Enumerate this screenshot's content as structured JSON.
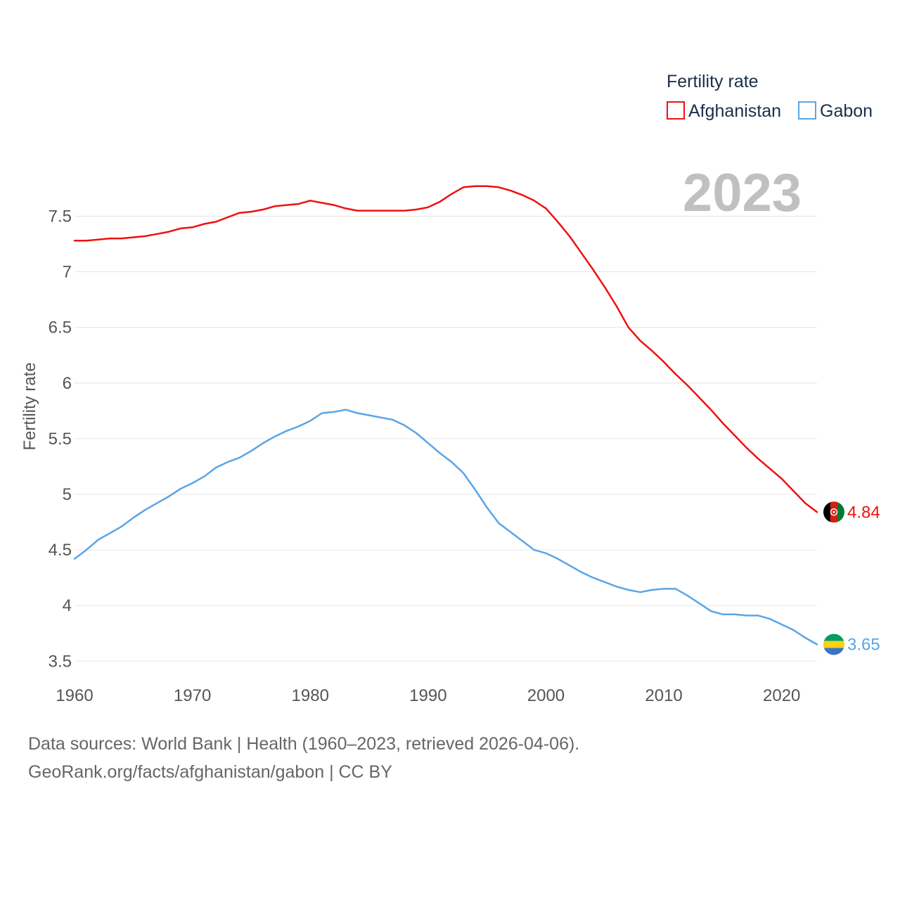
{
  "legend": {
    "title": "Fertility rate"
  },
  "year_label": "2023",
  "footer": {
    "sources": "Data sources: World Bank | Health (1960–2023, retrieved 2026-04-06).",
    "url": "GeoRank.org/facts/afghanistan/gabon | CC BY"
  },
  "colors": {
    "afghanistan": "#ee1111",
    "gabon": "#5aa5e6",
    "grid": "#e6e6e6",
    "tick": "#555555"
  },
  "icons": {
    "afghanistan": "afghanistan-flag-icon",
    "gabon": "gabon-flag-icon"
  },
  "chart_data": {
    "type": "line",
    "title": "",
    "xlabel": "",
    "ylabel": "Fertility rate",
    "xlim": [
      1960,
      2023
    ],
    "ylim": [
      3.35,
      7.8
    ],
    "x_ticks": [
      1960,
      1970,
      1980,
      1990,
      2000,
      2010,
      2020
    ],
    "x_tick_labels": [
      "1960",
      "1970",
      "1980",
      "1990",
      "2000",
      "2010",
      "2020"
    ],
    "y_ticks": [
      3.5,
      4,
      4.5,
      5,
      5.5,
      6,
      6.5,
      7,
      7.5
    ],
    "y_tick_labels": [
      "3.5",
      "4",
      "4.5",
      "5",
      "5.5",
      "6",
      "6.5",
      "7",
      "7.5"
    ],
    "grid": true,
    "legend_position": "top-right",
    "x": [
      1960,
      1961,
      1962,
      1963,
      1964,
      1965,
      1966,
      1967,
      1968,
      1969,
      1970,
      1971,
      1972,
      1973,
      1974,
      1975,
      1976,
      1977,
      1978,
      1979,
      1980,
      1981,
      1982,
      1983,
      1984,
      1985,
      1986,
      1987,
      1988,
      1989,
      1990,
      1991,
      1992,
      1993,
      1994,
      1995,
      1996,
      1997,
      1998,
      1999,
      2000,
      2001,
      2002,
      2003,
      2004,
      2005,
      2006,
      2007,
      2008,
      2009,
      2010,
      2011,
      2012,
      2013,
      2014,
      2015,
      2016,
      2017,
      2018,
      2019,
      2020,
      2021,
      2022,
      2023
    ],
    "series": [
      {
        "name": "Afghanistan",
        "end_label": "4.84",
        "values": [
          7.28,
          7.28,
          7.29,
          7.3,
          7.3,
          7.31,
          7.32,
          7.34,
          7.36,
          7.39,
          7.4,
          7.43,
          7.45,
          7.49,
          7.53,
          7.54,
          7.56,
          7.59,
          7.6,
          7.61,
          7.64,
          7.62,
          7.6,
          7.57,
          7.55,
          7.55,
          7.55,
          7.55,
          7.55,
          7.56,
          7.58,
          7.63,
          7.7,
          7.76,
          7.77,
          7.77,
          7.76,
          7.73,
          7.69,
          7.64,
          7.57,
          7.45,
          7.32,
          7.17,
          7.02,
          6.86,
          6.69,
          6.5,
          6.38,
          6.29,
          6.19,
          6.08,
          5.98,
          5.87,
          5.76,
          5.64,
          5.53,
          5.42,
          5.32,
          5.23,
          5.14,
          5.03,
          4.92,
          4.84
        ]
      },
      {
        "name": "Gabon",
        "end_label": "3.65",
        "values": [
          4.42,
          4.5,
          4.59,
          4.65,
          4.71,
          4.79,
          4.86,
          4.92,
          4.98,
          5.05,
          5.1,
          5.16,
          5.24,
          5.29,
          5.33,
          5.39,
          5.46,
          5.52,
          5.57,
          5.61,
          5.66,
          5.73,
          5.74,
          5.76,
          5.73,
          5.71,
          5.69,
          5.67,
          5.62,
          5.55,
          5.46,
          5.37,
          5.29,
          5.19,
          5.04,
          4.88,
          4.74,
          4.66,
          4.58,
          4.5,
          4.47,
          4.42,
          4.36,
          4.3,
          4.25,
          4.21,
          4.17,
          4.14,
          4.12,
          4.14,
          4.15,
          4.15,
          4.09,
          4.02,
          3.95,
          3.92,
          3.92,
          3.91,
          3.91,
          3.88,
          3.83,
          3.78,
          3.71,
          3.65
        ]
      }
    ]
  }
}
